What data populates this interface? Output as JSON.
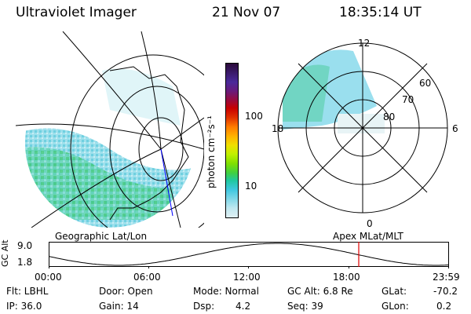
{
  "header": {
    "title": "Ultraviolet Imager",
    "date": "21 Nov 07",
    "time": "18:35:14 UT"
  },
  "left_panel": {
    "label": "Geographic Lat/Lon"
  },
  "right_panel": {
    "label": "Apex MLat/MLT",
    "mlt_labels": {
      "top": "12",
      "left": "18",
      "right": "6",
      "bottom": "0"
    },
    "lat_labels": [
      "60",
      "70",
      "80"
    ]
  },
  "colorbar": {
    "unit_label": "photon cm⁻²s⁻¹",
    "ticks": [
      "100",
      "10"
    ],
    "colors": [
      "#2a0a3a",
      "#3a1a6a",
      "#4a2a9a",
      "#6a1a7a",
      "#9a0a3a",
      "#c80000",
      "#e03000",
      "#ff7a00",
      "#ffb000",
      "#f0e000",
      "#c0f000",
      "#80e000",
      "#40d040",
      "#20c8a0",
      "#40c8e0",
      "#80d8e8",
      "#c0e8f0",
      "#e0f0f4"
    ]
  },
  "altitude_plot": {
    "ylabel": "GC Alt",
    "yticks": [
      "9.0",
      "1.8"
    ],
    "xticks": [
      "00:00",
      "06:00",
      "12:00",
      "18:00",
      "23:59"
    ],
    "current_hour": 18.59
  },
  "info": {
    "flt": "Flt: LBHL",
    "door": "Door: Open",
    "mode": "Mode: Normal",
    "gc_alt": "GC Alt: 6.8 Re",
    "glat_label": "GLat:",
    "glat_value": "-70.2",
    "ip": "IP: 36.0",
    "gain": "Gain: 14",
    "dsp_label": "Dsp:",
    "dsp_value": "4.2",
    "seq": "Seq: 39",
    "glon_label": "GLon:",
    "glon_value": "0.2"
  }
}
